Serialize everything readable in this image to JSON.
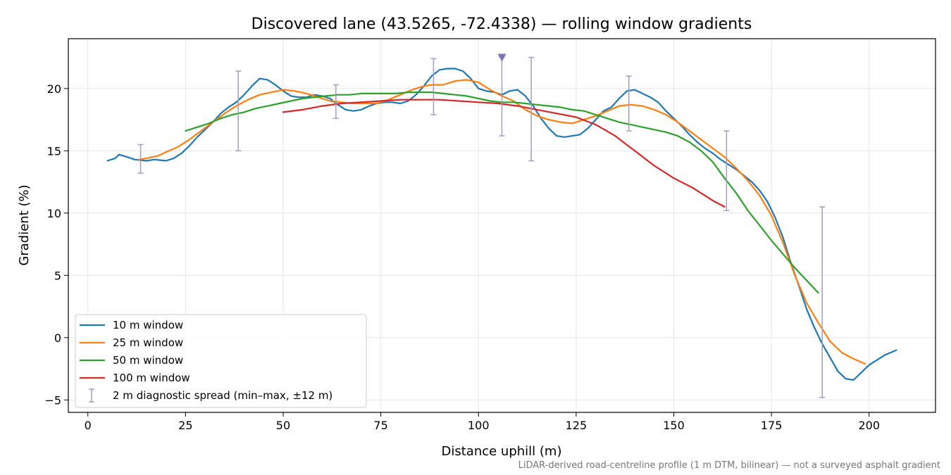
{
  "chart_data": {
    "type": "line",
    "title": "Discovered lane (43.5265, -72.4338) — rolling window gradients",
    "xlabel": "Distance uphill (m)",
    "ylabel": "Gradient (%)",
    "xlim": [
      -5,
      217
    ],
    "ylim": [
      -6,
      24
    ],
    "xticks": [
      0,
      25,
      50,
      75,
      100,
      125,
      150,
      175,
      200
    ],
    "yticks": [
      -5,
      0,
      5,
      10,
      15,
      20
    ],
    "grid": true,
    "legend_position": "lower-left",
    "footnote": "LiDAR-derived road-centreline profile (1 m DTM, bilinear) — not a surveyed asphalt gradient",
    "series": [
      {
        "name": "10 m window",
        "color": "#1f77b4",
        "points": [
          [
            5,
            14.2
          ],
          [
            7,
            14.4
          ],
          [
            8,
            14.7
          ],
          [
            10,
            14.5
          ],
          [
            12,
            14.3
          ],
          [
            15,
            14.2
          ],
          [
            17,
            14.3
          ],
          [
            20,
            14.2
          ],
          [
            22,
            14.4
          ],
          [
            24,
            14.8
          ],
          [
            26,
            15.4
          ],
          [
            28,
            16.1
          ],
          [
            30,
            16.7
          ],
          [
            32,
            17.3
          ],
          [
            34,
            18.0
          ],
          [
            36,
            18.5
          ],
          [
            38,
            18.9
          ],
          [
            40,
            19.5
          ],
          [
            42,
            20.2
          ],
          [
            44,
            20.8
          ],
          [
            46,
            20.7
          ],
          [
            48,
            20.3
          ],
          [
            50,
            19.8
          ],
          [
            52,
            19.4
          ],
          [
            54,
            19.3
          ],
          [
            56,
            19.3
          ],
          [
            58,
            19.5
          ],
          [
            60,
            19.4
          ],
          [
            62,
            19.2
          ],
          [
            64,
            18.7
          ],
          [
            66,
            18.3
          ],
          [
            68,
            18.2
          ],
          [
            70,
            18.3
          ],
          [
            72,
            18.6
          ],
          [
            74,
            18.8
          ],
          [
            76,
            18.9
          ],
          [
            78,
            18.9
          ],
          [
            80,
            18.8
          ],
          [
            82,
            19.0
          ],
          [
            84,
            19.5
          ],
          [
            86,
            20.2
          ],
          [
            88,
            21.0
          ],
          [
            90,
            21.5
          ],
          [
            92,
            21.6
          ],
          [
            94,
            21.6
          ],
          [
            96,
            21.4
          ],
          [
            98,
            20.8
          ],
          [
            100,
            20.0
          ],
          [
            102,
            19.8
          ],
          [
            104,
            19.7
          ],
          [
            106,
            19.5
          ],
          [
            108,
            19.8
          ],
          [
            110,
            19.9
          ],
          [
            112,
            19.4
          ],
          [
            114,
            18.6
          ],
          [
            116,
            17.6
          ],
          [
            118,
            16.8
          ],
          [
            120,
            16.2
          ],
          [
            122,
            16.1
          ],
          [
            124,
            16.2
          ],
          [
            126,
            16.3
          ],
          [
            128,
            16.8
          ],
          [
            130,
            17.5
          ],
          [
            132,
            18.2
          ],
          [
            134,
            18.5
          ],
          [
            136,
            19.2
          ],
          [
            138,
            19.8
          ],
          [
            140,
            19.9
          ],
          [
            142,
            19.6
          ],
          [
            144,
            19.3
          ],
          [
            146,
            18.9
          ],
          [
            148,
            18.2
          ],
          [
            150,
            17.6
          ],
          [
            152,
            17.0
          ],
          [
            154,
            16.3
          ],
          [
            156,
            15.7
          ],
          [
            158,
            15.2
          ],
          [
            160,
            14.8
          ],
          [
            162,
            14.3
          ],
          [
            164,
            13.9
          ],
          [
            166,
            13.5
          ],
          [
            168,
            13.0
          ],
          [
            170,
            12.5
          ],
          [
            172,
            11.8
          ],
          [
            174,
            10.9
          ],
          [
            176,
            9.6
          ],
          [
            178,
            8.0
          ],
          [
            180,
            6.0
          ],
          [
            182,
            4.2
          ],
          [
            184,
            2.3
          ],
          [
            186,
            0.8
          ],
          [
            188,
            -0.5
          ],
          [
            190,
            -1.6
          ],
          [
            192,
            -2.7
          ],
          [
            194,
            -3.3
          ],
          [
            196,
            -3.4
          ],
          [
            198,
            -2.8
          ],
          [
            200,
            -2.2
          ],
          [
            202,
            -1.8
          ],
          [
            204,
            -1.4
          ],
          [
            207,
            -1.0
          ]
        ]
      },
      {
        "name": "25 m window",
        "color": "#ff7f0e",
        "points": [
          [
            13,
            14.3
          ],
          [
            15,
            14.4
          ],
          [
            18,
            14.6
          ],
          [
            20,
            14.9
          ],
          [
            23,
            15.3
          ],
          [
            26,
            15.9
          ],
          [
            29,
            16.6
          ],
          [
            32,
            17.3
          ],
          [
            35,
            18.0
          ],
          [
            38,
            18.6
          ],
          [
            41,
            19.1
          ],
          [
            44,
            19.5
          ],
          [
            47,
            19.7
          ],
          [
            50,
            19.9
          ],
          [
            53,
            19.8
          ],
          [
            56,
            19.6
          ],
          [
            59,
            19.3
          ],
          [
            62,
            19.0
          ],
          [
            65,
            18.9
          ],
          [
            68,
            18.8
          ],
          [
            71,
            18.8
          ],
          [
            74,
            18.8
          ],
          [
            77,
            19.1
          ],
          [
            80,
            19.5
          ],
          [
            83,
            19.9
          ],
          [
            86,
            20.2
          ],
          [
            88,
            20.3
          ],
          [
            91,
            20.3
          ],
          [
            94,
            20.6
          ],
          [
            97,
            20.7
          ],
          [
            100,
            20.5
          ],
          [
            103,
            19.9
          ],
          [
            106,
            19.4
          ],
          [
            109,
            19.0
          ],
          [
            112,
            18.3
          ],
          [
            115,
            17.8
          ],
          [
            118,
            17.5
          ],
          [
            121,
            17.3
          ],
          [
            124,
            17.2
          ],
          [
            127,
            17.5
          ],
          [
            130,
            17.8
          ],
          [
            133,
            18.2
          ],
          [
            136,
            18.6
          ],
          [
            139,
            18.7
          ],
          [
            142,
            18.6
          ],
          [
            145,
            18.3
          ],
          [
            148,
            17.9
          ],
          [
            151,
            17.3
          ],
          [
            154,
            16.6
          ],
          [
            157,
            15.9
          ],
          [
            160,
            15.2
          ],
          [
            163,
            14.5
          ],
          [
            166,
            13.6
          ],
          [
            169,
            12.6
          ],
          [
            172,
            11.4
          ],
          [
            175,
            9.8
          ],
          [
            178,
            7.6
          ],
          [
            181,
            5.0
          ],
          [
            184,
            2.8
          ],
          [
            187,
            1.2
          ],
          [
            190,
            -0.3
          ],
          [
            193,
            -1.2
          ],
          [
            196,
            -1.7
          ],
          [
            199,
            -2.1
          ]
        ]
      },
      {
        "name": "50 m window",
        "color": "#2ca02c",
        "points": [
          [
            25,
            16.6
          ],
          [
            28,
            16.9
          ],
          [
            31,
            17.2
          ],
          [
            34,
            17.6
          ],
          [
            37,
            17.9
          ],
          [
            40,
            18.1
          ],
          [
            43,
            18.4
          ],
          [
            46,
            18.6
          ],
          [
            49,
            18.8
          ],
          [
            52,
            19.0
          ],
          [
            55,
            19.2
          ],
          [
            58,
            19.3
          ],
          [
            61,
            19.4
          ],
          [
            64,
            19.5
          ],
          [
            67,
            19.5
          ],
          [
            70,
            19.6
          ],
          [
            73,
            19.6
          ],
          [
            76,
            19.6
          ],
          [
            79,
            19.6
          ],
          [
            82,
            19.7
          ],
          [
            85,
            19.7
          ],
          [
            88,
            19.7
          ],
          [
            91,
            19.6
          ],
          [
            94,
            19.5
          ],
          [
            97,
            19.4
          ],
          [
            100,
            19.2
          ],
          [
            103,
            19.0
          ],
          [
            106,
            18.9
          ],
          [
            109,
            18.9
          ],
          [
            112,
            18.8
          ],
          [
            115,
            18.7
          ],
          [
            118,
            18.6
          ],
          [
            121,
            18.5
          ],
          [
            124,
            18.3
          ],
          [
            127,
            18.2
          ],
          [
            130,
            17.9
          ],
          [
            133,
            17.6
          ],
          [
            136,
            17.3
          ],
          [
            139,
            17.1
          ],
          [
            142,
            16.9
          ],
          [
            145,
            16.7
          ],
          [
            148,
            16.5
          ],
          [
            151,
            16.2
          ],
          [
            154,
            15.7
          ],
          [
            157,
            15.0
          ],
          [
            160,
            14.1
          ],
          [
            163,
            12.8
          ],
          [
            166,
            11.6
          ],
          [
            169,
            10.2
          ],
          [
            172,
            9.0
          ],
          [
            175,
            7.8
          ],
          [
            178,
            6.7
          ],
          [
            181,
            5.6
          ],
          [
            184,
            4.6
          ],
          [
            187,
            3.6
          ]
        ]
      },
      {
        "name": "100 m window",
        "color": "#d62728",
        "points": [
          [
            50,
            18.1
          ],
          [
            55,
            18.3
          ],
          [
            60,
            18.6
          ],
          [
            65,
            18.8
          ],
          [
            70,
            18.9
          ],
          [
            75,
            19.0
          ],
          [
            80,
            19.1
          ],
          [
            85,
            19.1
          ],
          [
            90,
            19.1
          ],
          [
            95,
            19.0
          ],
          [
            100,
            18.9
          ],
          [
            105,
            18.8
          ],
          [
            110,
            18.6
          ],
          [
            115,
            18.3
          ],
          [
            120,
            18.0
          ],
          [
            125,
            17.7
          ],
          [
            130,
            17.1
          ],
          [
            135,
            16.2
          ],
          [
            140,
            15.0
          ],
          [
            145,
            13.8
          ],
          [
            150,
            12.8
          ],
          [
            155,
            12.0
          ],
          [
            160,
            11.0
          ],
          [
            163,
            10.5
          ]
        ]
      }
    ],
    "error_bars": {
      "name": "2 m diagnostic spread (min–max, ±12 m)",
      "color": "#a09cc6",
      "bars": [
        [
          13.5,
          13.2,
          15.5
        ],
        [
          38.5,
          15.0,
          21.4
        ],
        [
          63.5,
          17.6,
          20.3
        ],
        [
          88.5,
          17.9,
          22.4
        ],
        [
          106,
          16.2,
          22.5
        ],
        [
          113.5,
          14.2,
          22.5
        ],
        [
          138.5,
          16.6,
          21.0
        ],
        [
          163.5,
          10.2,
          16.6
        ],
        [
          188,
          -4.8,
          10.5
        ]
      ]
    },
    "marker": {
      "x": 106,
      "y": 22.5,
      "symbol": "triangle-down",
      "color": "#8172b3"
    }
  }
}
